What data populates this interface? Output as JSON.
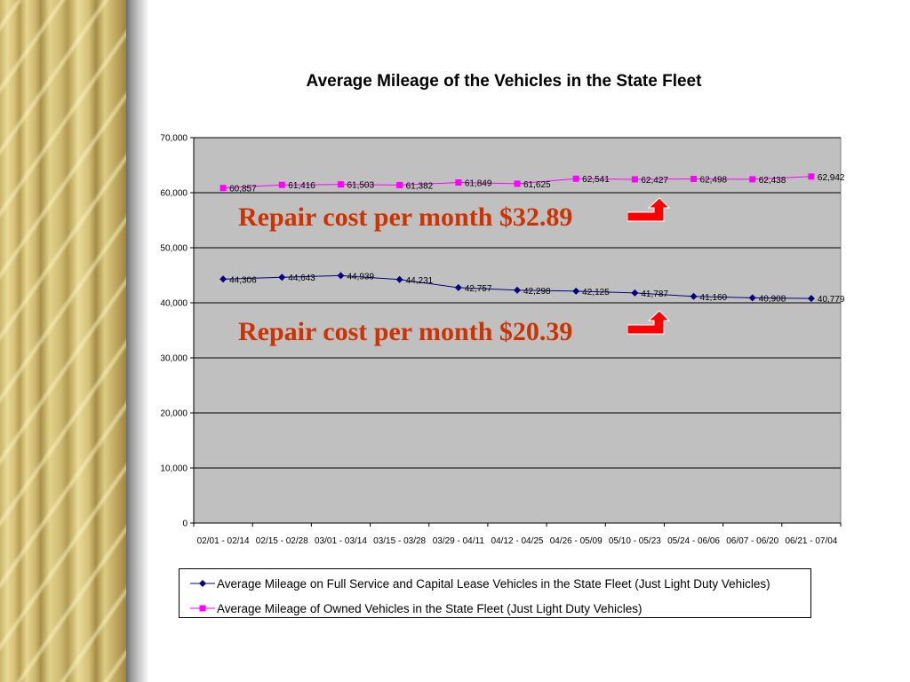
{
  "chart_data": {
    "type": "line",
    "title": "Average Mileage of the Vehicles in the State Fleet",
    "categories": [
      "02/01 - 02/14",
      "02/15 - 02/28",
      "03/01 - 03/14",
      "03/15 - 03/28",
      "03/29 - 04/11",
      "04/12 - 04/25",
      "04/26 - 05/09",
      "05/10 - 05/23",
      "05/24 - 06/06",
      "06/07 - 06/20",
      "06/21 - 07/04"
    ],
    "ylim": [
      0,
      70000
    ],
    "yticks": [
      0,
      10000,
      20000,
      30000,
      40000,
      50000,
      60000,
      70000
    ],
    "ytick_labels": [
      "0",
      "10,000",
      "20,000",
      "30,000",
      "40,000",
      "50,000",
      "60,000",
      "70,000"
    ],
    "grid": true,
    "legend_position": "bottom",
    "series": [
      {
        "name": "Average Mileage on Full Service and Capital Lease Vehicles in the State Fleet (Just Light Duty Vehicles)",
        "values": [
          44306,
          44643,
          44939,
          44231,
          42757,
          42298,
          42125,
          41787,
          41160,
          40908,
          40779
        ],
        "labels": [
          "44,306",
          "44,643",
          "44,939",
          "44,231",
          "42,757",
          "42,298",
          "42,125",
          "41,787",
          "41,160",
          "40,908",
          "40,779"
        ],
        "color": "#000080",
        "marker": "diamond"
      },
      {
        "name": "Average Mileage of Owned Vehicles in the State Fleet (Just Light Duty Vehicles)",
        "values": [
          60857,
          61416,
          61503,
          61382,
          61849,
          61625,
          62541,
          62427,
          62498,
          62438,
          62942
        ],
        "labels": [
          "60,857",
          "61,416",
          "61,503",
          "61,382",
          "61,849",
          "61,625",
          "62,541",
          "62,427",
          "62,498",
          "62,438",
          "62,942"
        ],
        "color": "#ff00ff",
        "marker": "square"
      }
    ],
    "plot_background": "#c0c0c0"
  },
  "annotations": [
    {
      "text": "Repair cost per month $32.89",
      "color": "#cc3300"
    },
    {
      "text": "Repair cost per month $20.39",
      "color": "#cc3300"
    }
  ],
  "arrow_color": "#ff0000"
}
